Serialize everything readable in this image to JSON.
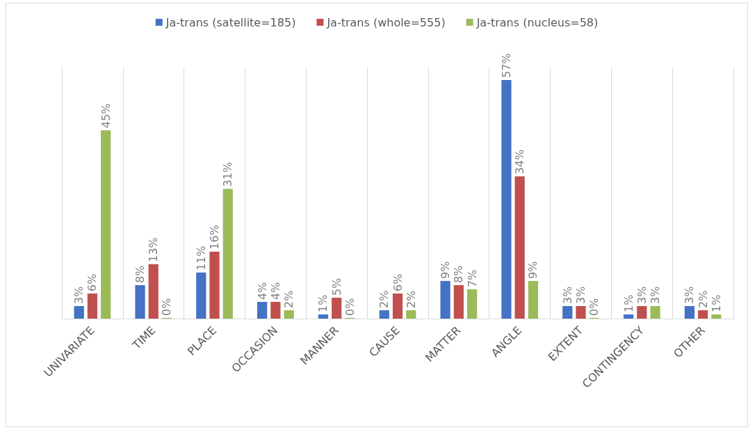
{
  "chart_data": {
    "type": "bar",
    "categories": [
      "UNIVARIATE",
      "TIME",
      "PLACE",
      "OCCASION",
      "MANNER",
      "CAUSE",
      "MATTER",
      "ANGLE",
      "EXTENT",
      "CONTINGENCY",
      "OTHER"
    ],
    "series": [
      {
        "name": "Ja-trans (satellite=185)",
        "color": "#4472c4",
        "values": [
          3,
          8,
          11,
          4,
          1,
          2,
          9,
          57,
          3,
          1,
          3
        ],
        "value_labels": [
          "3%",
          "8%",
          "11%",
          "4%",
          "1%",
          "2%",
          "9%",
          "57%",
          "3%",
          "1%",
          "3%"
        ]
      },
      {
        "name": "Ja-trans (whole=555)",
        "color": "#c0504d",
        "values": [
          6,
          13,
          16,
          4,
          5,
          6,
          8,
          34,
          3,
          3,
          2
        ],
        "value_labels": [
          "6%",
          "13%",
          "16%",
          "4%",
          "5%",
          "6%",
          "8%",
          "34%",
          "3%",
          "3%",
          "2%"
        ]
      },
      {
        "name": "Ja-trans (nucleus=58)",
        "color": "#9bbb59",
        "values": [
          45,
          0,
          31,
          2,
          0,
          2,
          7,
          9,
          0,
          3,
          1
        ],
        "value_labels": [
          "45%",
          "0%",
          "31%",
          "2%",
          "0%",
          "2%",
          "7%",
          "9%",
          "0%",
          "3%",
          "1%"
        ]
      }
    ],
    "grid": "x",
    "legend": "top"
  }
}
